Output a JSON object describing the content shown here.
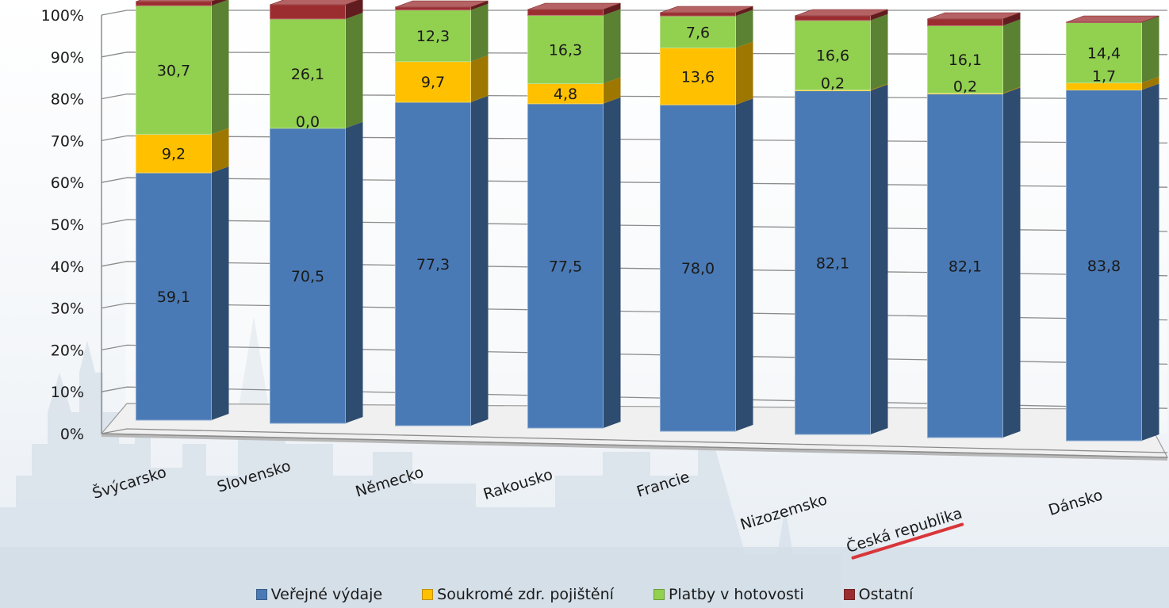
{
  "chart_data": {
    "type": "bar",
    "stacked": true,
    "percent": true,
    "three_d": true,
    "categories": [
      "Švýcarsko",
      "Slovensko",
      "Německo",
      "Rakousko",
      "Francie",
      "Nizozemsko",
      "Česká republika",
      "Dánsko"
    ],
    "series": [
      {
        "name": "Veřejné výdaje",
        "color": "#4a7ab5",
        "values": [
          59.1,
          70.5,
          77.3,
          77.5,
          78.0,
          82.1,
          82.1,
          83.8
        ],
        "labels": [
          "59,1",
          "70,5",
          "77,3",
          "77,5",
          "78,0",
          "82,1",
          "82,1",
          "83,8"
        ]
      },
      {
        "name": "Soukromé zdr. pojištění",
        "color": "#ffc000",
        "values": [
          9.2,
          0.0,
          9.7,
          4.8,
          13.6,
          0.2,
          0.2,
          1.7
        ],
        "labels": [
          "9,2",
          "0,0",
          "9,7",
          "4,8",
          "13,6",
          "0,2",
          "0,2",
          "1,7"
        ]
      },
      {
        "name": "Platby v hotovosti",
        "color": "#92d050",
        "values": [
          30.7,
          26.1,
          12.3,
          16.3,
          7.6,
          16.6,
          16.1,
          14.4
        ],
        "labels": [
          "30,7",
          "26,1",
          "12,3",
          "16,3",
          "7,6",
          "16,6",
          "16,1",
          "14,4"
        ]
      },
      {
        "name": "Ostatní",
        "color": "#9b2d30",
        "values": [
          1.0,
          3.4,
          0.7,
          1.4,
          0.8,
          1.1,
          1.6,
          0.1
        ],
        "labels": []
      }
    ],
    "y_ticks": [
      "0%",
      "10%",
      "20%",
      "30%",
      "40%",
      "50%",
      "60%",
      "70%",
      "80%",
      "90%",
      "100%"
    ],
    "ylim": [
      0,
      100
    ],
    "grid": true,
    "legend": "bottom",
    "highlighted_category": "Česká republika",
    "highlight_color": "#d9363a"
  }
}
